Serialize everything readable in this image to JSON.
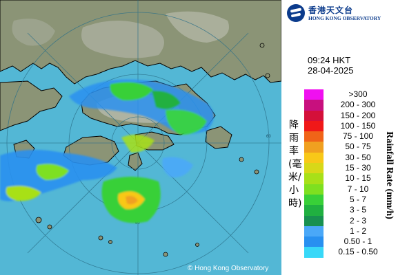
{
  "map": {
    "copyright": "© Hong Kong Observatory",
    "range_ring_label": "60",
    "colors": {
      "sea": "#53b7d5",
      "land": "#8b9476",
      "ring": "#2a6f88",
      "coast": "#000000"
    },
    "rain_areas": [
      {
        "region": "north-shore-band",
        "intensity_mm_h": "0.50 - 1"
      },
      {
        "region": "lantau-south-cells",
        "intensity_mm_h": "7 - 10"
      },
      {
        "region": "western-sea-cells",
        "intensity_mm_h": "5 - 7"
      },
      {
        "region": "southern-sea-cell",
        "intensity_mm_h": "30 - 50"
      }
    ]
  },
  "logo": {
    "chinese": "香港天文台",
    "english": "HONG KONG OBSERVATORY",
    "icon": "hko-logo-icon"
  },
  "time": {
    "time": "09:24 HKT",
    "date": "28-04-2025"
  },
  "legend": {
    "title_cn": "降雨率(毫米/小時)",
    "title_en": "Rainfall Rate (mm/h)",
    "items": [
      {
        "label": ">300",
        "color": "#f010f0"
      },
      {
        "label": "200 - 300",
        "color": "#c8107e"
      },
      {
        "label": "150 - 200",
        "color": "#d4103a"
      },
      {
        "label": "100 - 150",
        "color": "#f01818"
      },
      {
        "label": "75 - 100",
        "color": "#f06418"
      },
      {
        "label": "50 - 75",
        "color": "#f0a020"
      },
      {
        "label": "30 - 50",
        "color": "#f8c818"
      },
      {
        "label": "15 - 30",
        "color": "#d8d818"
      },
      {
        "label": "10 - 15",
        "color": "#a8e018"
      },
      {
        "label": "7 - 10",
        "color": "#7ee020"
      },
      {
        "label": "5 - 7",
        "color": "#38d038"
      },
      {
        "label": "3 - 5",
        "color": "#20b040"
      },
      {
        "label": "2 - 3",
        "color": "#189050"
      },
      {
        "label": "1 - 2",
        "color": "#4aa8f8"
      },
      {
        "label": "0.50 - 1",
        "color": "#2890f0"
      },
      {
        "label": "0.15 - 0.50",
        "color": "#38d8f8"
      }
    ]
  }
}
